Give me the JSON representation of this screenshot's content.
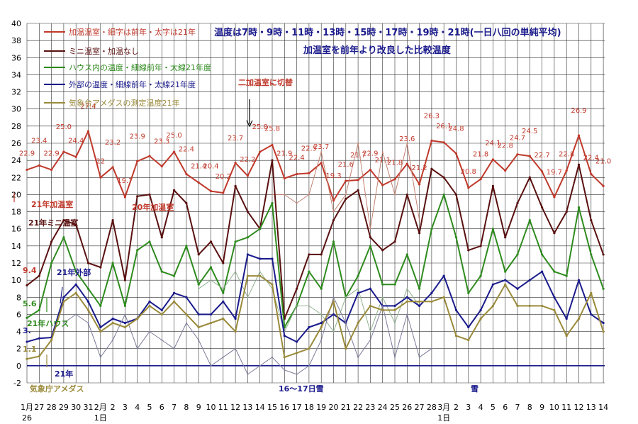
{
  "chart_data": {
    "type": "line",
    "title": "温度は7時・9時・11時・13時・15時・17時・19時・21時(一日八回の単純平均)",
    "subtitle": "加温室を前年より改良した比較温度",
    "ylim": [
      -2,
      40
    ],
    "yticks": [
      "-2",
      "0",
      "2",
      "4",
      "6",
      "8",
      "10",
      "12",
      "14",
      "16",
      "18",
      "20",
      "22",
      "24",
      "26",
      "28",
      "30",
      "32",
      "34",
      "36",
      "38",
      "40"
    ],
    "x_labels": [
      "1月",
      "27",
      "28",
      "29",
      "30",
      "31",
      "2月",
      "2",
      "3",
      "4",
      "5",
      "6",
      "7",
      "8",
      "9",
      "10",
      "11",
      "12",
      "13",
      "14",
      "15",
      "16",
      "17",
      "18",
      "19",
      "20",
      "21",
      "22",
      "23",
      "24",
      "25",
      "26",
      "27",
      "28",
      "3月",
      "2",
      "3",
      "4",
      "5",
      "6",
      "7",
      "8",
      "9",
      "10",
      "11",
      "12",
      "13",
      "14"
    ],
    "x_labels_2": {
      "0": "26",
      "6": "1日",
      "34": "1日"
    },
    "grid": true,
    "legend": [
      {
        "label": "加温温室・細字は前年・太字は21年",
        "color": "#c0392b"
      },
      {
        "label": "ミニ温室・加温なし",
        "color": "#5a1010"
      },
      {
        "label": "ハウス内の温度・細線前年・太線21年度",
        "color": "#2e8b1e"
      },
      {
        "label": "外部の温度・細線前年・太線21年度",
        "color": "#1a1a8c"
      },
      {
        "label": "気象台アメダスの測定温度21年",
        "color": "#9a8a3a"
      }
    ],
    "series": [
      {
        "name": "加温温室 21年",
        "color": "#c0392b",
        "width": 2,
        "values": [
          22.9,
          23.4,
          22.9,
          25.0,
          24.4,
          27.4,
          22.0,
          23.2,
          19.7,
          23.9,
          24.5,
          23.3,
          25.0,
          22.4,
          21.4,
          20.4,
          20.2,
          23.7,
          22.2,
          25.0,
          25.8,
          21.9,
          22.4,
          22.5,
          23.7,
          19.3,
          21.6,
          21.7,
          22.9,
          21.1,
          21.8,
          23.6,
          21.2,
          26.3,
          26.1,
          24.8,
          20.8,
          21.8,
          24.1,
          22.8,
          24.7,
          24.5,
          22.7,
          19.7,
          22.8,
          26.9,
          22.4,
          21.0
        ]
      },
      {
        "name": "加温温室 前年",
        "color": "#c08070",
        "width": 1,
        "values": [
          null,
          null,
          null,
          null,
          null,
          null,
          null,
          null,
          null,
          null,
          null,
          null,
          null,
          null,
          null,
          null,
          null,
          null,
          null,
          null,
          20,
          20,
          19,
          20,
          25,
          18,
          20,
          26,
          16,
          25,
          20,
          26,
          17,
          null,
          null,
          null,
          null,
          null,
          null,
          null,
          null,
          null,
          null,
          null,
          null,
          null,
          null,
          null
        ]
      },
      {
        "name": "ミニ温室 21年",
        "color": "#5a1010",
        "width": 2,
        "values": [
          9.4,
          10.5,
          14.5,
          17.0,
          16.5,
          12.0,
          11.5,
          17.0,
          10.0,
          19.8,
          20.0,
          15.0,
          20.5,
          19.0,
          13.0,
          14.5,
          12.0,
          21.0,
          18.0,
          16.0,
          24.0,
          5.5,
          9.0,
          13.0,
          13.0,
          17.0,
          19.5,
          20.5,
          15.0,
          13.5,
          14.5,
          20.0,
          15.5,
          23.0,
          22.0,
          20.0,
          13.5,
          14.0,
          21.0,
          15.0,
          19.0,
          22.0,
          18.5,
          15.5,
          18.0,
          23.5,
          17.0,
          13.0
        ]
      },
      {
        "name": "ハウス 21年",
        "color": "#2e8b1e",
        "width": 2,
        "values": [
          5.6,
          6.5,
          12.0,
          15.0,
          11.0,
          9.0,
          7.0,
          12.0,
          7.0,
          13.5,
          14.5,
          11.0,
          10.5,
          14.0,
          9.5,
          11.5,
          8.5,
          14.5,
          15.0,
          16.0,
          19.0,
          4.5,
          7.0,
          11.0,
          9.0,
          14.5,
          8.0,
          10.5,
          14.0,
          9.5,
          9.5,
          13.0,
          9.0,
          16.0,
          20.0,
          15.0,
          8.5,
          10.5,
          16.0,
          11.0,
          13.0,
          17.0,
          13.0,
          11.0,
          10.5,
          18.5,
          13.0,
          9.0
        ]
      },
      {
        "name": "ハウス 前年",
        "color": "#90b090",
        "width": 1,
        "values": [
          null,
          null,
          null,
          null,
          null,
          null,
          null,
          null,
          null,
          null,
          null,
          null,
          null,
          null,
          9,
          10,
          9,
          11,
          8,
          11,
          9,
          4,
          7,
          7,
          6,
          4,
          8,
          9,
          4,
          8,
          5,
          9,
          7,
          null,
          null,
          null,
          null,
          null,
          null,
          null,
          null,
          null,
          null,
          null,
          null,
          null,
          null,
          null
        ]
      },
      {
        "name": "外部 21年",
        "color": "#1a1a8c",
        "width": 2,
        "values": [
          2.8,
          3.2,
          3.3,
          8.0,
          9.5,
          7.5,
          4.5,
          5.5,
          5.0,
          5.5,
          7.5,
          6.5,
          8.5,
          8.0,
          6.0,
          6.0,
          7.5,
          5.5,
          13.0,
          12.5,
          12.5,
          3.5,
          2.8,
          4.5,
          5.0,
          6.0,
          5.0,
          8.5,
          9.0,
          7.0,
          7.0,
          8.0,
          7.0,
          8.5,
          10.5,
          6.5,
          4.5,
          6.5,
          9.5,
          10.0,
          9.0,
          10.0,
          11.0,
          8.0,
          5.5,
          10.0,
          6.0,
          5.0
        ]
      },
      {
        "name": "外部 前年",
        "color": "#7a7a9a",
        "width": 1,
        "values": [
          null,
          null,
          null,
          5,
          6,
          5,
          1,
          3,
          6,
          2,
          4,
          3,
          2,
          5,
          3,
          0,
          1,
          2,
          -1,
          0,
          1,
          -0.5,
          -1,
          0,
          3,
          8,
          5,
          1,
          3,
          7,
          1,
          6,
          1,
          2,
          null,
          null,
          null,
          null,
          null,
          null,
          null,
          null,
          null,
          null,
          null,
          null,
          null,
          null
        ]
      },
      {
        "name": "気象庁アメダス 21年",
        "color": "#9a8a3a",
        "width": 2,
        "values": [
          0.8,
          1.1,
          3.0,
          7.5,
          8.5,
          6.5,
          4.0,
          5.0,
          4.5,
          5.5,
          7.0,
          6.0,
          7.5,
          6.0,
          4.5,
          5.0,
          5.5,
          4.0,
          10.5,
          10.5,
          9.5,
          1.0,
          1.5,
          2.0,
          4.5,
          7.5,
          2.0,
          5.0,
          7.0,
          6.5,
          6.5,
          7.5,
          7.5,
          7.5,
          8.0,
          3.5,
          3.0,
          5.5,
          7.0,
          9.5,
          7.0,
          7.0,
          7.0,
          6.5,
          3.5,
          5.5,
          8.5,
          4.0
        ]
      }
    ],
    "data_labels": [
      {
        "i": 0,
        "v": "22.9"
      },
      {
        "i": 1,
        "v": "23.4"
      },
      {
        "i": 2,
        "v": "22.9"
      },
      {
        "i": 3,
        "v": "25.0"
      },
      {
        "i": 4,
        "v": "24.4"
      },
      {
        "i": 5,
        "v": "27.4"
      },
      {
        "i": 6,
        "v": "22"
      },
      {
        "i": 7,
        "v": "23.2"
      },
      {
        "i": 8,
        "v": "19.7"
      },
      {
        "i": 9,
        "v": "23.9"
      },
      {
        "i": 11,
        "v": "23.3"
      },
      {
        "i": 12,
        "v": "25.0"
      },
      {
        "i": 13,
        "v": "22.4"
      },
      {
        "i": 14,
        "v": "21.4"
      },
      {
        "i": 15,
        "v": "20.4"
      },
      {
        "i": 16,
        "v": "20.2"
      },
      {
        "i": 17,
        "v": "23.7"
      },
      {
        "i": 18,
        "v": "22.2"
      },
      {
        "i": 19,
        "v": "25.0"
      },
      {
        "i": 20,
        "v": "25.8"
      },
      {
        "i": 21,
        "v": "21.9"
      },
      {
        "i": 22,
        "v": "22.4"
      },
      {
        "i": 23,
        "v": "22.5"
      },
      {
        "i": 24,
        "v": "23.7"
      },
      {
        "i": 25,
        "v": "19.3"
      },
      {
        "i": 26,
        "v": "21.6"
      },
      {
        "i": 27,
        "v": "21.7"
      },
      {
        "i": 28,
        "v": "22.9"
      },
      {
        "i": 29,
        "v": "21.1"
      },
      {
        "i": 30,
        "v": "21.8"
      },
      {
        "i": 31,
        "v": "23.6"
      },
      {
        "i": 32,
        "v": "21.2"
      },
      {
        "i": 33,
        "v": "26.3"
      },
      {
        "i": 34,
        "v": "26.1"
      },
      {
        "i": 35,
        "v": "24.8"
      },
      {
        "i": 36,
        "v": "20.8"
      },
      {
        "i": 37,
        "v": "21.8"
      },
      {
        "i": 38,
        "v": "24.1"
      },
      {
        "i": 39,
        "v": "22.8"
      },
      {
        "i": 40,
        "v": "24.7"
      },
      {
        "i": 41,
        "v": "24.5"
      },
      {
        "i": 42,
        "v": "22.7"
      },
      {
        "i": 43,
        "v": "19.7"
      },
      {
        "i": 44,
        "v": "22.8"
      },
      {
        "i": 45,
        "v": "26.9"
      },
      {
        "i": 46,
        "v": "22.4"
      },
      {
        "i": 47,
        "v": "21.0"
      }
    ],
    "annotations": [
      {
        "text": "二加温室に切替",
        "color": "#c0392b"
      },
      {
        "text": "21年加温室",
        "color": "#c0392b"
      },
      {
        "text": "20年加温室",
        "color": "#c0392b"
      },
      {
        "text": "21年ミニ温室",
        "color": "#5a1010"
      },
      {
        "text": "9.4",
        "color": "#c0392b"
      },
      {
        "text": "5.6",
        "color": "#2e8b1e"
      },
      {
        "text": "21年ハウス",
        "color": "#2e8b1e"
      },
      {
        "text": "21年外部",
        "color": "#1a1a8c"
      },
      {
        "text": "3.",
        "color": "#1a1a8c"
      },
      {
        "text": "1.1",
        "color": "#9a8a3a"
      },
      {
        "text": "21年",
        "color": "#1a1a8c"
      },
      {
        "text": "気象庁アメダス",
        "color": "#9a8a3a"
      },
      {
        "text": "16〜17日雪",
        "color": "#1a1a8c"
      },
      {
        "text": "雪",
        "color": "#1a1a8c"
      }
    ]
  }
}
